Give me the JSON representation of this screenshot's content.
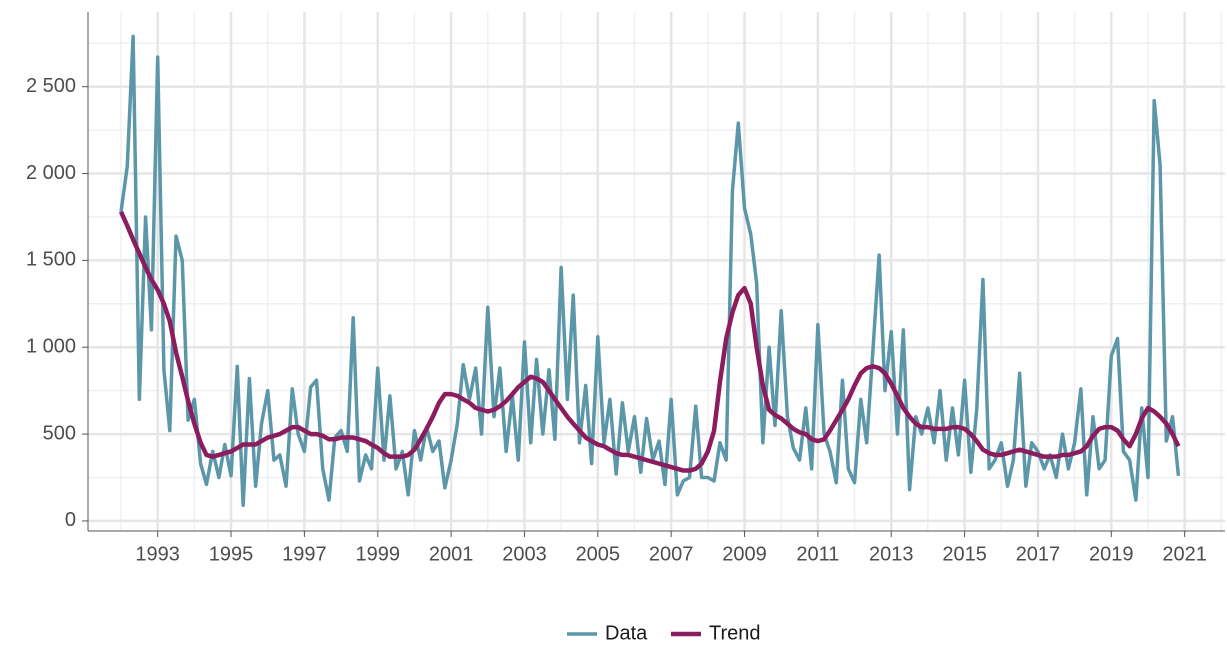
{
  "chart_data": {
    "type": "line",
    "x": [
      1992.0,
      1992.17,
      1992.33,
      1992.5,
      1992.67,
      1992.83,
      1993.0,
      1993.17,
      1993.33,
      1993.5,
      1993.67,
      1993.83,
      1994.0,
      1994.17,
      1994.33,
      1994.5,
      1994.67,
      1994.83,
      1995.0,
      1995.17,
      1995.33,
      1995.5,
      1995.67,
      1995.83,
      1996.0,
      1996.17,
      1996.33,
      1996.5,
      1996.67,
      1996.83,
      1997.0,
      1997.17,
      1997.33,
      1997.5,
      1997.67,
      1997.83,
      1998.0,
      1998.17,
      1998.33,
      1998.5,
      1998.67,
      1998.83,
      1999.0,
      1999.17,
      1999.33,
      1999.5,
      1999.67,
      1999.83,
      2000.0,
      2000.17,
      2000.33,
      2000.5,
      2000.67,
      2000.83,
      2001.0,
      2001.17,
      2001.33,
      2001.5,
      2001.67,
      2001.83,
      2002.0,
      2002.17,
      2002.33,
      2002.5,
      2002.67,
      2002.83,
      2003.0,
      2003.17,
      2003.33,
      2003.5,
      2003.67,
      2003.83,
      2004.0,
      2004.17,
      2004.33,
      2004.5,
      2004.67,
      2004.83,
      2005.0,
      2005.17,
      2005.33,
      2005.5,
      2005.67,
      2005.83,
      2006.0,
      2006.17,
      2006.33,
      2006.5,
      2006.67,
      2006.83,
      2007.0,
      2007.17,
      2007.33,
      2007.5,
      2007.67,
      2007.83,
      2008.0,
      2008.17,
      2008.33,
      2008.5,
      2008.67,
      2008.83,
      2009.0,
      2009.17,
      2009.33,
      2009.5,
      2009.67,
      2009.83,
      2010.0,
      2010.17,
      2010.33,
      2010.5,
      2010.67,
      2010.83,
      2011.0,
      2011.17,
      2011.33,
      2011.5,
      2011.67,
      2011.83,
      2012.0,
      2012.17,
      2012.33,
      2012.5,
      2012.67,
      2012.83,
      2013.0,
      2013.17,
      2013.33,
      2013.5,
      2013.67,
      2013.83,
      2014.0,
      2014.17,
      2014.33,
      2014.5,
      2014.67,
      2014.83,
      2015.0,
      2015.17,
      2015.33,
      2015.5,
      2015.67,
      2015.83,
      2016.0,
      2016.17,
      2016.33,
      2016.5,
      2016.67,
      2016.83,
      2017.0,
      2017.17,
      2017.33,
      2017.5,
      2017.67,
      2017.83,
      2018.0,
      2018.17,
      2018.33,
      2018.5,
      2018.67,
      2018.83,
      2019.0,
      2019.17,
      2019.33,
      2019.5,
      2019.67,
      2019.83,
      2020.0,
      2020.17,
      2020.33,
      2020.5,
      2020.67,
      2020.83
    ],
    "series": [
      {
        "name": "Data",
        "color": "#5b97a8",
        "width": 3.5,
        "values": [
          1780,
          2040,
          2790,
          700,
          1750,
          1100,
          2670,
          870,
          520,
          1640,
          1500,
          580,
          700,
          330,
          210,
          400,
          250,
          440,
          260,
          890,
          90,
          820,
          200,
          560,
          750,
          350,
          380,
          200,
          760,
          500,
          400,
          770,
          810,
          300,
          120,
          480,
          520,
          400,
          1170,
          230,
          380,
          300,
          880,
          350,
          720,
          300,
          400,
          150,
          520,
          350,
          540,
          400,
          460,
          190,
          350,
          560,
          900,
          700,
          880,
          500,
          1230,
          600,
          880,
          400,
          720,
          350,
          1030,
          450,
          930,
          500,
          870,
          470,
          1460,
          700,
          1300,
          450,
          780,
          330,
          1060,
          450,
          700,
          270,
          680,
          400,
          600,
          280,
          590,
          350,
          460,
          210,
          700,
          150,
          230,
          250,
          660,
          250,
          250,
          230,
          450,
          350,
          1900,
          2290,
          1800,
          1650,
          1370,
          450,
          1000,
          550,
          1210,
          600,
          420,
          350,
          650,
          300,
          1130,
          500,
          400,
          220,
          810,
          300,
          220,
          700,
          450,
          980,
          1530,
          750,
          1090,
          500,
          1100,
          180,
          600,
          500,
          650,
          450,
          750,
          350,
          650,
          380,
          810,
          280,
          640,
          1390,
          300,
          350,
          450,
          200,
          350,
          850,
          200,
          450,
          400,
          300,
          380,
          250,
          500,
          300,
          450,
          760,
          150,
          600,
          300,
          350,
          950,
          1050,
          400,
          350,
          120,
          650,
          250,
          2420,
          2050,
          460,
          600,
          260
        ]
      },
      {
        "name": "Trend",
        "color": "#8b1d5e",
        "width": 4.5,
        "values": [
          1780,
          1700,
          1620,
          1540,
          1460,
          1390,
          1330,
          1250,
          1150,
          970,
          830,
          690,
          560,
          450,
          380,
          370,
          380,
          390,
          400,
          420,
          440,
          440,
          440,
          460,
          480,
          490,
          500,
          520,
          540,
          540,
          520,
          500,
          500,
          490,
          470,
          470,
          480,
          480,
          480,
          470,
          460,
          440,
          420,
          390,
          370,
          370,
          370,
          380,
          410,
          470,
          530,
          600,
          680,
          730,
          730,
          720,
          700,
          680,
          650,
          640,
          630,
          640,
          660,
          690,
          730,
          770,
          800,
          830,
          820,
          800,
          750,
          700,
          650,
          600,
          560,
          520,
          480,
          460,
          440,
          430,
          410,
          390,
          380,
          380,
          370,
          360,
          350,
          340,
          330,
          320,
          310,
          300,
          290,
          290,
          300,
          330,
          400,
          520,
          800,
          1050,
          1200,
          1300,
          1340,
          1250,
          1000,
          780,
          640,
          610,
          590,
          560,
          530,
          510,
          500,
          470,
          460,
          470,
          520,
          580,
          640,
          700,
          780,
          850,
          880,
          890,
          880,
          850,
          790,
          720,
          650,
          600,
          560,
          540,
          540,
          530,
          530,
          530,
          540,
          540,
          530,
          500,
          460,
          410,
          390,
          380,
          380,
          390,
          400,
          410,
          400,
          390,
          380,
          370,
          370,
          370,
          380,
          380,
          390,
          400,
          430,
          490,
          530,
          540,
          540,
          520,
          470,
          430,
          500,
          590,
          650,
          630,
          600,
          560,
          500,
          430
        ]
      }
    ],
    "xlim": [
      1991.1,
      2022.1
    ],
    "xticks": [
      1993,
      1995,
      1997,
      1999,
      2001,
      2003,
      2005,
      2007,
      2009,
      2011,
      2013,
      2015,
      2017,
      2019,
      2021
    ],
    "xminorticks": [
      1992,
      1994,
      1996,
      1998,
      2000,
      2002,
      2004,
      2006,
      2008,
      2010,
      2012,
      2014,
      2016,
      2018,
      2020,
      2022
    ],
    "ylim": [
      -58,
      2930
    ],
    "yticks": [
      0,
      500,
      {
        "value": 1000,
        "label": "1 000"
      },
      {
        "value": 1500,
        "label": "1 500"
      },
      {
        "value": 2000,
        "label": "2 000"
      },
      {
        "value": 2500,
        "label": "2 500"
      }
    ],
    "yminorticks": [
      250,
      750,
      1250,
      1750,
      2250,
      2750
    ],
    "grid": true,
    "legend": "bottom"
  }
}
